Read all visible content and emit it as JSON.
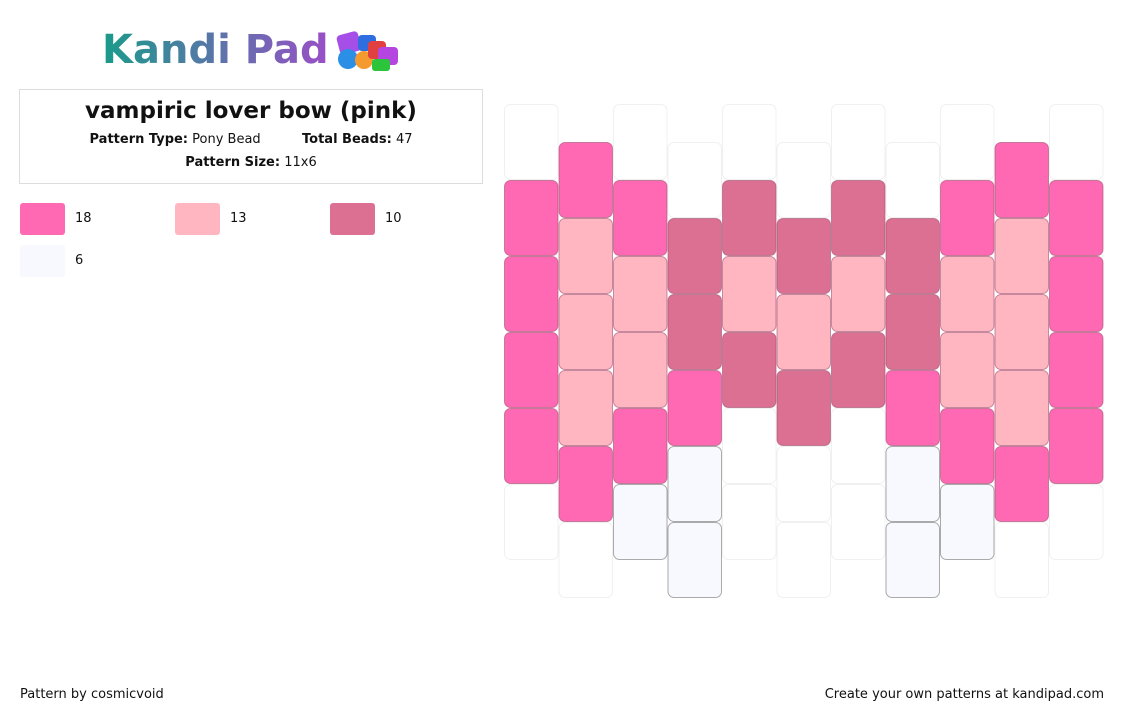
{
  "logo": "Kandi Pad",
  "header": {
    "title": "vampiric lover bow (pink)",
    "pattern_type_label": "Pattern Type:",
    "pattern_type": "Pony Bead",
    "total_beads_label": "Total Beads:",
    "total_beads": "47",
    "pattern_size_label": "Pattern Size:",
    "pattern_size": "11x6"
  },
  "palette": [
    {
      "color": "#ff69b4",
      "count": "18"
    },
    {
      "color": "#ffb6c1",
      "count": "13"
    },
    {
      "color": "#db7093",
      "count": "10"
    },
    {
      "color": "#f8f8ff",
      "count": "6"
    }
  ],
  "grid": [
    [
      null,
      0,
      0,
      0,
      0,
      null
    ],
    [
      0,
      1,
      1,
      1,
      0,
      null
    ],
    [
      null,
      0,
      1,
      1,
      0,
      3
    ],
    [
      null,
      2,
      2,
      0,
      3,
      3
    ],
    [
      null,
      2,
      1,
      2,
      null,
      null
    ],
    [
      null,
      2,
      1,
      2,
      null,
      null
    ],
    [
      null,
      2,
      1,
      2,
      null,
      null
    ],
    [
      null,
      2,
      2,
      0,
      3,
      3
    ],
    [
      null,
      0,
      1,
      1,
      0,
      3
    ],
    [
      0,
      1,
      1,
      1,
      0,
      null
    ],
    [
      null,
      0,
      0,
      0,
      0,
      null
    ]
  ],
  "footer": {
    "credit": "Pattern by cosmicvoid",
    "promo": "Create your own patterns at kandipad.com"
  }
}
